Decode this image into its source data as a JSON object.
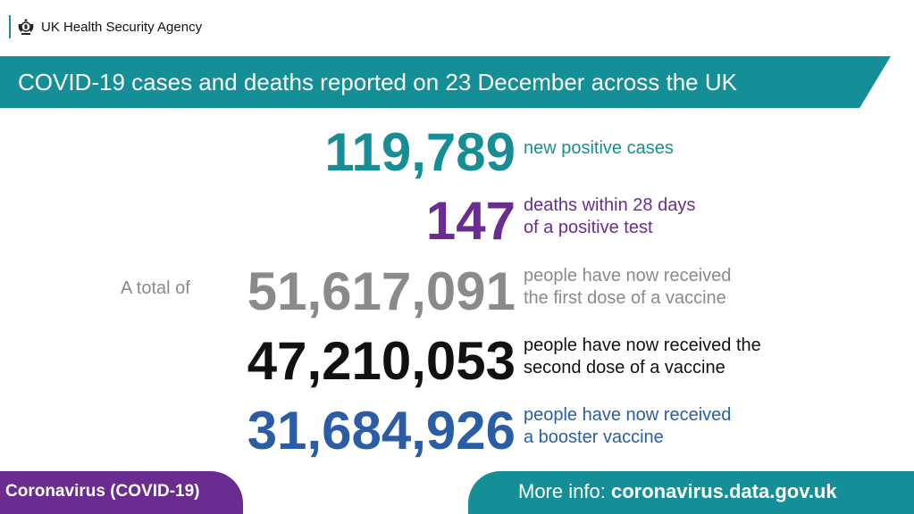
{
  "header": {
    "agency": "UK Health Security Agency"
  },
  "banner": {
    "title": "COVID-19 cases and deaths reported on 23 December across the UK"
  },
  "stats": {
    "cases": {
      "value": "119,789",
      "line1": "new positive cases",
      "color": "#178e96"
    },
    "deaths": {
      "value": "147",
      "line1": "deaths within 28 days",
      "line2": "of a positive test",
      "color": "#6a2c91"
    },
    "first_dose": {
      "prefix": "A total of",
      "value": "51,617,091",
      "line1": "people have now received",
      "line2": "the first dose of a vaccine",
      "color": "#8a8a8a"
    },
    "second_dose": {
      "value": "47,210,053",
      "line1": "people have now received the",
      "line2": "second dose of a vaccine",
      "color": "#111111"
    },
    "booster": {
      "value": "31,684,926",
      "line1": "people have now received",
      "line2": "a booster vaccine",
      "color": "#2b5ca6"
    }
  },
  "footer": {
    "left_label": "Coronavirus (COVID-19)",
    "more_info_label": "More info:",
    "more_info_url": "coronavirus.data.gov.uk"
  },
  "colors": {
    "teal": "#148e97",
    "purple": "#6a2c91",
    "grey": "#8a8a8a",
    "blue": "#2b5ca6"
  }
}
